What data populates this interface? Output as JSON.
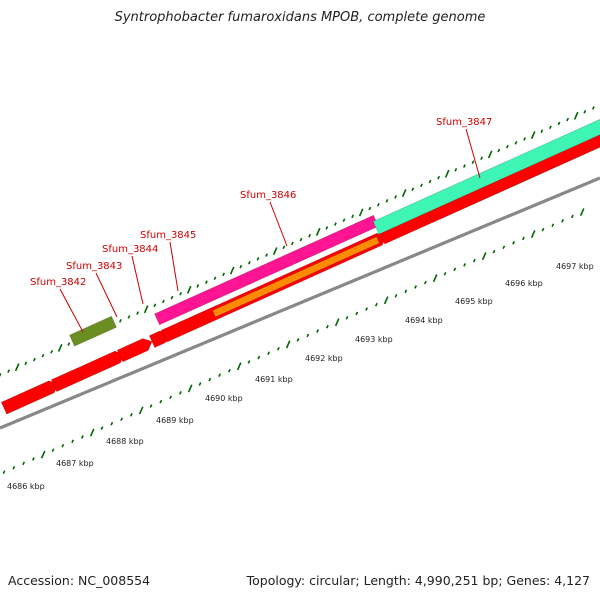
{
  "title": "Syntrophobacter fumaroxidans MPOB, complete genome",
  "footer": {
    "accession": "Accession: NC_008554",
    "summary": "Topology: circular; Length: 4,990,251 bp; Genes: 4,127"
  },
  "colors": {
    "forward_cds": "#ff0000",
    "backbone": "#888888",
    "tick": "#006600",
    "label": "#cc0000",
    "olive_feature": "#6b8e23",
    "magenta_feature": "#ff1493",
    "orange_feature": "#ff8c00",
    "aqua_feature": "#3ff5b5"
  },
  "gene_labels": [
    "Sfum_3842",
    "Sfum_3843",
    "Sfum_3844",
    "Sfum_3845",
    "Sfum_3846",
    "Sfum_3847"
  ],
  "scale_labels": [
    "4686 kbp",
    "4687 kbp",
    "4688 kbp",
    "4689 kbp",
    "4690 kbp",
    "4691 kbp",
    "4692 kbp",
    "4693 kbp",
    "4694 kbp",
    "4695 kbp",
    "4696 kbp",
    "4697 kbp"
  ]
}
